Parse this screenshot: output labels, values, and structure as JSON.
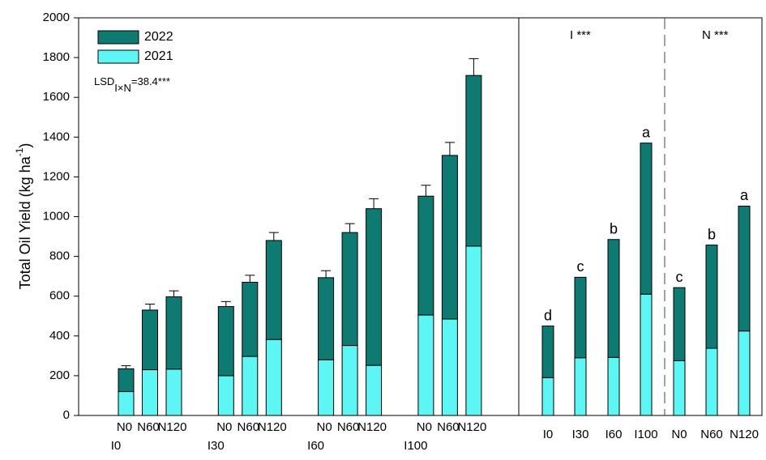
{
  "chart_data": [
    {
      "type": "bar",
      "stacked": true,
      "ylabel": {
        "text": "Total Oil Yield (kg ha",
        "sup": "-1",
        "close": ")"
      },
      "annotation": {
        "text": "LSD",
        "sub": "I×N",
        "suffix": "=38.4***"
      },
      "groups": [
        "I0",
        "I30",
        "I60",
        "I100"
      ],
      "categories": [
        "N0",
        "N60",
        "N120",
        "N0",
        "N60",
        "N120",
        "N0",
        "N60",
        "N120",
        "N0",
        "N60",
        "N120"
      ],
      "series": [
        {
          "name": "2021",
          "color": "#5ef5f5",
          "values": [
            120,
            230,
            233,
            200,
            297,
            382,
            280,
            352,
            252,
            505,
            485,
            852
          ]
        },
        {
          "name": "2022",
          "color": "#0e7a72",
          "values": [
            115,
            300,
            364,
            348,
            373,
            498,
            413,
            568,
            788,
            598,
            823,
            858
          ],
          "errors": [
            15,
            30,
            30,
            25,
            35,
            40,
            35,
            45,
            50,
            55,
            65,
            85
          ]
        }
      ],
      "ylim": [
        0,
        2000
      ],
      "yticks": [
        0,
        200,
        400,
        600,
        800,
        1000,
        1200,
        1400,
        1600,
        1800,
        2000
      ],
      "legend": "upper-left"
    },
    {
      "type": "bar",
      "stacked": true,
      "titles": [
        "I ***",
        "N ***"
      ],
      "categories": [
        "I0",
        "I30",
        "I60",
        "I100",
        "N0",
        "N60",
        "N120"
      ],
      "series": [
        {
          "name": "2021",
          "color": "#5ef5f5",
          "values": [
            190,
            290,
            292,
            610,
            275,
            338,
            425
          ]
        },
        {
          "name": "2022",
          "color": "#0e7a72",
          "values": [
            260,
            405,
            593,
            760,
            368,
            519,
            628
          ]
        }
      ],
      "letters": [
        "d",
        "c",
        "b",
        "a",
        "c",
        "b",
        "a"
      ],
      "ylim": [
        0,
        2000
      ]
    }
  ]
}
